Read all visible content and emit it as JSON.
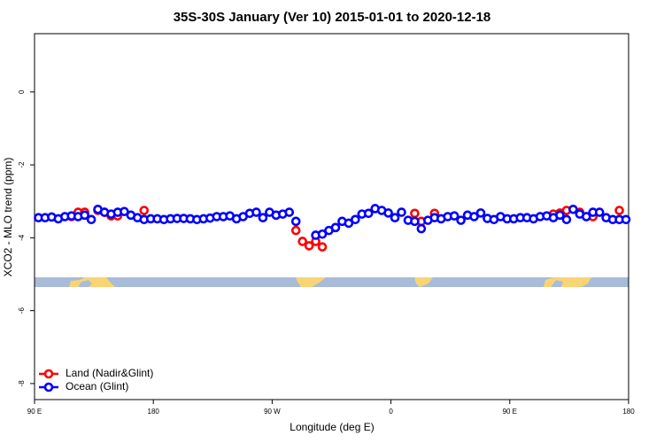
{
  "chart_data": {
    "type": "scatter",
    "title": "35S-30S January (Ver 10)   2015-01-01 to 2020-12-18",
    "x_label": "Longitude (deg E)",
    "y_label": "XCO2 - MLO trend (ppm)",
    "xlim": [
      90,
      540
    ],
    "ylim": [
      -8.44,
      1.6
    ],
    "xticks": [
      {
        "value": 90,
        "label": "90 E"
      },
      180,
      {
        "value": 270,
        "label": "90 W"
      },
      {
        "value": 360,
        "label": "0"
      },
      {
        "value": 450,
        "label": "90 E"
      },
      {
        "value": 540,
        "label": "180"
      }
    ],
    "yticks": [
      -8,
      -6,
      -4,
      -2,
      0
    ],
    "legend": "bottom-left",
    "x": [
      93,
      98,
      103,
      108,
      113,
      118,
      123,
      128,
      133,
      138,
      143,
      148,
      153,
      158,
      163,
      168,
      173,
      178,
      183,
      188,
      193,
      198,
      203,
      208,
      213,
      218,
      223,
      228,
      233,
      238,
      243,
      248,
      253,
      258,
      263,
      268,
      273,
      278,
      283,
      288,
      293,
      298,
      303,
      308,
      313,
      318,
      323,
      328,
      333,
      338,
      343,
      348,
      353,
      358,
      363,
      368,
      373,
      378,
      383,
      388,
      393,
      398,
      403,
      408,
      413,
      418,
      423,
      428,
      433,
      438,
      443,
      448,
      453,
      458,
      463,
      468,
      473,
      478,
      483,
      488,
      493,
      498,
      503,
      508,
      513,
      518,
      523,
      528,
      533,
      538
    ],
    "series": [
      {
        "name": "Land (Nadir&Glint)",
        "color": "#ff0000",
        "values": [
          null,
          null,
          null,
          null,
          null,
          -3.42,
          -3.3,
          -3.3,
          null,
          -3.25,
          -3.3,
          -3.4,
          -3.4,
          null,
          null,
          null,
          -3.25,
          null,
          null,
          null,
          null,
          null,
          null,
          null,
          null,
          null,
          null,
          null,
          null,
          null,
          null,
          null,
          null,
          null,
          null,
          null,
          null,
          null,
          null,
          -3.8,
          -4.1,
          -4.22,
          -4.1,
          -4.25,
          null,
          null,
          null,
          null,
          null,
          null,
          null,
          null,
          null,
          null,
          null,
          null,
          null,
          -3.33,
          -3.55,
          null,
          -3.33,
          null,
          null,
          null,
          null,
          null,
          null,
          null,
          null,
          null,
          null,
          null,
          null,
          null,
          null,
          null,
          null,
          null,
          -3.35,
          -3.32,
          -3.25,
          null,
          -3.3,
          -3.42,
          -3.42,
          null,
          null,
          null,
          -3.25,
          null
        ]
      },
      {
        "name": "Ocean (Glint)",
        "color": "#0000ff",
        "values": [
          -3.45,
          -3.45,
          -3.43,
          -3.48,
          -3.42,
          -3.4,
          -3.42,
          -3.38,
          -3.5,
          -3.22,
          -3.3,
          -3.35,
          -3.3,
          -3.28,
          -3.38,
          -3.45,
          -3.5,
          -3.48,
          -3.48,
          -3.5,
          -3.48,
          -3.47,
          -3.47,
          -3.48,
          -3.5,
          -3.48,
          -3.46,
          -3.42,
          -3.42,
          -3.4,
          -3.48,
          -3.42,
          -3.33,
          -3.3,
          -3.45,
          -3.3,
          -3.38,
          -3.35,
          -3.3,
          -3.55,
          null,
          null,
          -3.93,
          -3.9,
          -3.8,
          -3.72,
          -3.55,
          -3.6,
          -3.5,
          -3.35,
          -3.33,
          -3.2,
          -3.25,
          -3.32,
          -3.45,
          -3.3,
          -3.52,
          -3.55,
          -3.75,
          -3.52,
          -3.45,
          -3.48,
          -3.42,
          -3.4,
          -3.52,
          -3.38,
          -3.42,
          -3.32,
          -3.47,
          -3.5,
          -3.42,
          -3.48,
          -3.48,
          -3.45,
          -3.45,
          -3.48,
          -3.42,
          -3.4,
          -3.45,
          -3.38,
          -3.5,
          -3.22,
          -3.35,
          -3.42,
          -3.3,
          -3.3,
          -3.45,
          -3.5,
          -3.5,
          -3.5
        ]
      }
    ]
  }
}
